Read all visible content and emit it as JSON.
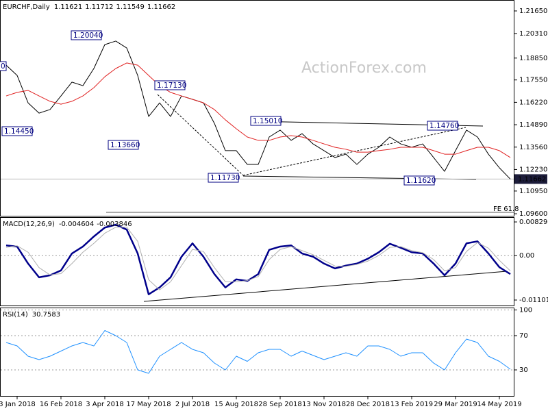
{
  "chart_data": [
    {
      "type": "line",
      "title": "EURCHF,Daily",
      "ohlc": [
        1.11621,
        1.11712,
        1.11549,
        1.11662
      ],
      "watermark": "ActionForex.com",
      "annotations": [
        "1.20040",
        "1.17130",
        "1.14450",
        "1.13660",
        "1.15010",
        "1.11730",
        "1.14760",
        "1.11620",
        "0",
        "FE 61.8"
      ],
      "series": [
        {
          "color": "#000000",
          "values": [
            1.1843,
            1.1782,
            1.1619,
            1.1558,
            1.1579,
            1.166,
            1.1742,
            1.1721,
            1.1823,
            1.1965,
            1.1986,
            1.1945,
            1.1782,
            1.1538,
            1.1619,
            1.1538,
            1.166,
            1.164,
            1.1619,
            1.1497,
            1.1335,
            1.1335,
            1.1253,
            1.1253,
            1.1416,
            1.1457,
            1.1396,
            1.1436,
            1.1375,
            1.1335,
            1.1294,
            1.1314,
            1.1253,
            1.1314,
            1.1355,
            1.1416,
            1.1375,
            1.1355,
            1.1375,
            1.1294,
            1.1212,
            1.1335,
            1.1457,
            1.1416,
            1.1314,
            1.1233,
            1.1166
          ]
        },
        {
          "color": "#e02020",
          "values": [
            1.166,
            1.1681,
            1.1693,
            1.166,
            1.1628,
            1.1611,
            1.1628,
            1.166,
            1.1709,
            1.1774,
            1.1823,
            1.1856,
            1.1843,
            1.1782,
            1.1721,
            1.1681,
            1.166,
            1.164,
            1.1619,
            1.1579,
            1.1518,
            1.1465,
            1.1416,
            1.1396,
            1.1396,
            1.1416,
            1.1424,
            1.1416,
            1.1396,
            1.1375,
            1.1355,
            1.1343,
            1.1326,
            1.1326,
            1.1335,
            1.1343,
            1.1355,
            1.1355,
            1.1355,
            1.1335,
            1.1314,
            1.1314,
            1.1335,
            1.1355,
            1.1355,
            1.1335,
            1.1294
          ]
        }
      ],
      "ylim": [
        1.0948,
        1.223
      ],
      "yticks": [
        {
          "value": 1.2165,
          "label": "1.21650"
        },
        {
          "value": 1.2031,
          "label": "1.20310"
        },
        {
          "value": 1.1885,
          "label": "1.18850"
        },
        {
          "value": 1.1755,
          "label": "1.17550"
        },
        {
          "value": 1.1622,
          "label": "1.16220"
        },
        {
          "value": 1.1489,
          "label": "1.14890"
        },
        {
          "value": 1.1356,
          "label": "1.13560"
        },
        {
          "value": 1.1223,
          "label": "1.12230"
        },
        {
          "value": 1.1095,
          "label": "1.10950"
        },
        {
          "value": 1.096,
          "label": "1.09600"
        }
      ],
      "grid": false
    },
    {
      "type": "line",
      "title": "MACD(12,26,9)",
      "readings": [
        -0.004604,
        -0.003846
      ],
      "series": [
        {
          "color": "#00008b",
          "values": [
            0.0025,
            0.0022,
            -0.002,
            -0.0054,
            -0.0049,
            -0.0037,
            0.0005,
            0.0022,
            0.0047,
            0.0069,
            0.0076,
            0.0064,
            0.0005,
            -0.0096,
            -0.0079,
            -0.0054,
            -0.0003,
            0.003,
            -0.0003,
            -0.0046,
            -0.0079,
            -0.0059,
            -0.0063,
            -0.0046,
            0.0014,
            0.0022,
            0.0025,
            0.0005,
            -0.0003,
            -0.002,
            -0.0032,
            -0.0025,
            -0.002,
            -0.0008,
            0.0008,
            0.0029,
            0.0019,
            0.0008,
            0.0005,
            -0.002,
            -0.0049,
            -0.002,
            0.003,
            0.0035,
            0.0005,
            -0.0029,
            -0.0046
          ]
        },
        {
          "color": "#b0b0b0",
          "values": [
            0.002,
            0.0024,
            0.0008,
            -0.003,
            -0.0048,
            -0.0045,
            -0.002,
            0.0008,
            0.003,
            0.0055,
            0.007,
            0.007,
            0.0035,
            -0.006,
            -0.0085,
            -0.0065,
            -0.0025,
            0.0015,
            0.001,
            -0.003,
            -0.0065,
            -0.0065,
            -0.0062,
            -0.0052,
            -0.001,
            0.0015,
            0.0022,
            0.0012,
            0.0002,
            -0.0012,
            -0.0026,
            -0.0027,
            -0.0022,
            -0.0014,
            0.0,
            0.002,
            0.0022,
            0.0012,
            0.0007,
            -0.001,
            -0.0038,
            -0.003,
            0.001,
            0.0032,
            0.0018,
            -0.0012,
            -0.0038
          ]
        }
      ],
      "ylim": [
        -0.01237,
        0.00948
      ],
      "yticks": [
        0.008292,
        {
          "value": 0,
          "label": "0.00"
        },
        -0.011015
      ],
      "grid": false
    },
    {
      "type": "line",
      "title": "RSI(14)",
      "readings": [
        30.7583
      ],
      "categories": [
        null,
        "3 Jan 2018",
        null,
        null,
        null,
        "16 Feb 2018",
        null,
        null,
        null,
        "3 Apr 2018",
        null,
        null,
        null,
        "17 May 2018",
        null,
        null,
        null,
        "2 Jul 2018",
        null,
        null,
        null,
        "15 Aug 2018",
        null,
        null,
        null,
        "28 Sep 2018",
        null,
        null,
        null,
        "13 Nov 2018",
        null,
        null,
        null,
        "28 Dec 2018",
        null,
        null,
        null,
        "13 Feb 2019",
        null,
        null,
        null,
        "29 Mar 2019",
        null,
        null,
        null,
        "14 May 2019",
        null
      ],
      "series": [
        {
          "color": "#1e90ff",
          "values": [
            62,
            58,
            46,
            42,
            46,
            52,
            58,
            62,
            58,
            76,
            70,
            62,
            30,
            26,
            46,
            54,
            62,
            54,
            50,
            38,
            30,
            46,
            40,
            50,
            54,
            54,
            46,
            52,
            47,
            42,
            46,
            50,
            46,
            58,
            58,
            54,
            46,
            50,
            50,
            38,
            30,
            50,
            66,
            62,
            46,
            40,
            30.8
          ]
        }
      ],
      "ylim": [
        -0.4,
        102.8
      ],
      "yticks": [
        100,
        70,
        30
      ],
      "grid": true
    }
  ]
}
